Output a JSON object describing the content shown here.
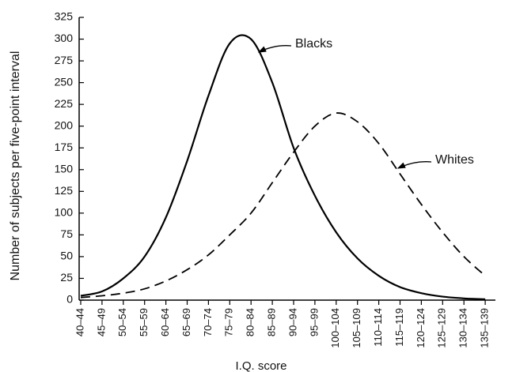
{
  "chart_data": {
    "type": "line",
    "ylabel": "Number of subjects per five-point interval",
    "xlabel": "I.Q. score",
    "categories": [
      "40–44",
      "45–49",
      "50–54",
      "55–59",
      "60–64",
      "65–69",
      "70–74",
      "75–79",
      "80–84",
      "85–89",
      "90–94",
      "95–99",
      "100–104",
      "105–109",
      "110–114",
      "115–119",
      "120–124",
      "125–129",
      "130–134",
      "135–139"
    ],
    "series": [
      {
        "name": "Blacks",
        "color": "#000000",
        "line_style": "solid",
        "values": [
          5,
          10,
          25,
          50,
          95,
          160,
          235,
          295,
          300,
          250,
          175,
          120,
          78,
          48,
          28,
          15,
          8,
          4,
          2,
          1
        ]
      },
      {
        "name": "Whites",
        "color": "#000000",
        "line_style": "dashed",
        "values": [
          3,
          5,
          8,
          13,
          22,
          35,
          52,
          75,
          100,
          135,
          170,
          200,
          215,
          205,
          180,
          145,
          110,
          78,
          50,
          28
        ]
      }
    ],
    "ylim": [
      0,
      325
    ],
    "yticks": [
      0,
      25,
      50,
      75,
      100,
      125,
      150,
      175,
      200,
      225,
      250,
      275,
      300,
      325
    ],
    "grid": false
  }
}
